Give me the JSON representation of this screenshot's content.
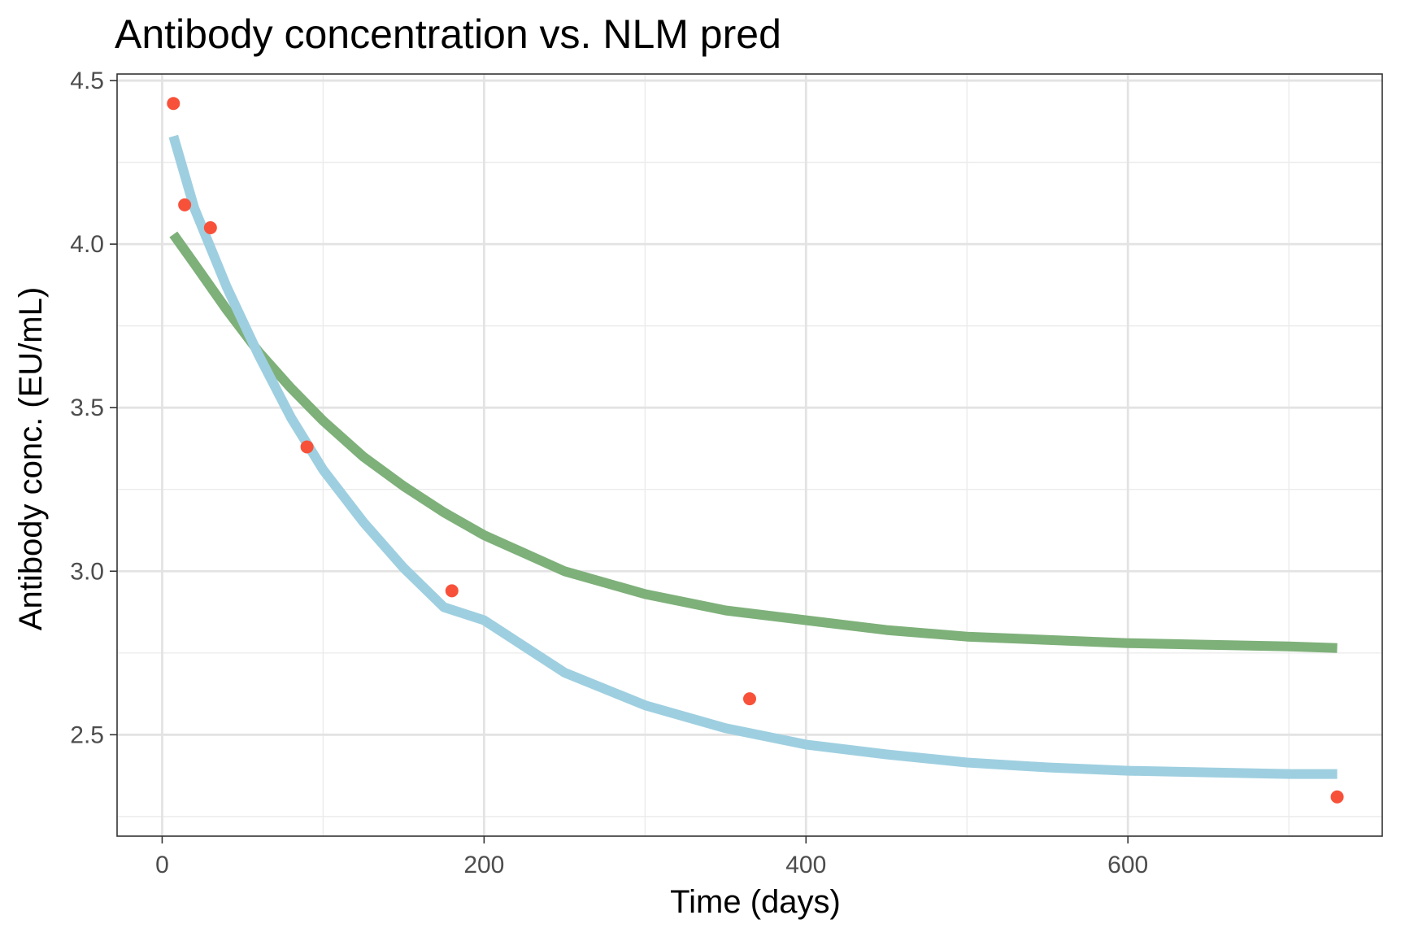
{
  "chart_data": {
    "type": "line",
    "title": "Antibody concentration vs. NLM pred",
    "xlabel": "Time (days)",
    "ylabel": "Antibody conc. (EU/mL)",
    "xlim": [
      -28,
      758
    ],
    "ylim": [
      2.19,
      4.52
    ],
    "x_ticks": [
      0,
      200,
      400,
      600
    ],
    "x_tick_labels": [
      "0",
      "200",
      "400",
      "600"
    ],
    "y_ticks": [
      2.5,
      3.0,
      3.5,
      4.0,
      4.5
    ],
    "y_tick_labels": [
      "2.5",
      "3.0",
      "3.5",
      "4.0",
      "4.5"
    ],
    "grid": true,
    "legend": "none",
    "observed_points": {
      "color": "#f8513a",
      "x": [
        7,
        14,
        30,
        90,
        180,
        365,
        730
      ],
      "y": [
        4.43,
        4.12,
        4.05,
        3.38,
        2.94,
        2.61,
        2.31
      ]
    },
    "series": [
      {
        "color": "#7eb07a",
        "x": [
          7,
          20,
          40,
          60,
          80,
          100,
          125,
          150,
          175,
          200,
          250,
          300,
          350,
          400,
          450,
          500,
          550,
          600,
          650,
          700,
          730
        ],
        "y": [
          4.03,
          3.94,
          3.8,
          3.67,
          3.56,
          3.46,
          3.35,
          3.26,
          3.18,
          3.11,
          3.0,
          2.93,
          2.88,
          2.85,
          2.82,
          2.8,
          2.79,
          2.78,
          2.775,
          2.77,
          2.765
        ]
      },
      {
        "color": "#9ecfe0",
        "x": [
          7,
          20,
          40,
          60,
          80,
          100,
          125,
          150,
          175,
          200,
          250,
          300,
          350,
          400,
          450,
          500,
          550,
          600,
          650,
          700,
          730
        ],
        "y": [
          4.33,
          4.11,
          3.87,
          3.66,
          3.47,
          3.31,
          3.15,
          3.01,
          2.89,
          2.85,
          2.69,
          2.59,
          2.52,
          2.47,
          2.44,
          2.415,
          2.4,
          2.39,
          2.385,
          2.38,
          2.38
        ]
      }
    ]
  }
}
